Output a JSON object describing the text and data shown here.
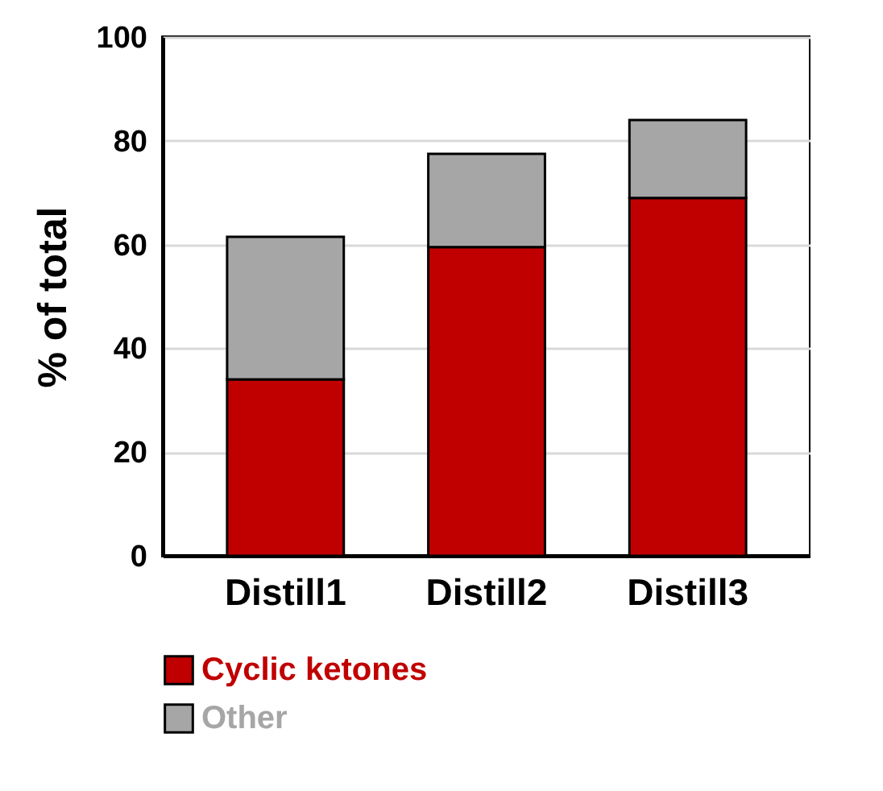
{
  "chart_data": {
    "type": "bar",
    "stacked": true,
    "ylabel": "% of total",
    "categories": [
      "Distill1",
      "Distill2",
      "Distill3"
    ],
    "series": [
      {
        "name": "Cyclic ketones",
        "color": "#c00000",
        "values": [
          34,
          59.5,
          69
        ]
      },
      {
        "name": "Other",
        "color": "#a6a6a6",
        "values": [
          27.5,
          18,
          15
        ]
      }
    ],
    "ylim": [
      0,
      100
    ],
    "yticks": [
      0,
      20,
      40,
      60,
      80,
      100
    ],
    "grid": "y",
    "legend": "bottom"
  }
}
